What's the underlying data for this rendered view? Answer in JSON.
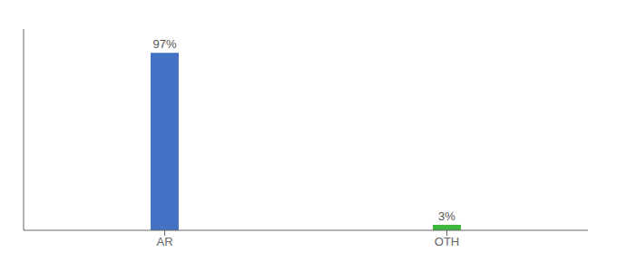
{
  "chart_data": {
    "type": "bar",
    "categories": [
      "AR",
      "OTH"
    ],
    "values": [
      97,
      3
    ],
    "value_labels": [
      "97%",
      "3%"
    ],
    "colors": [
      "#4472c4",
      "#3dba3d"
    ],
    "ylim": [
      0,
      110
    ],
    "data_labels": true,
    "tick_labels": "x",
    "grid": false
  }
}
